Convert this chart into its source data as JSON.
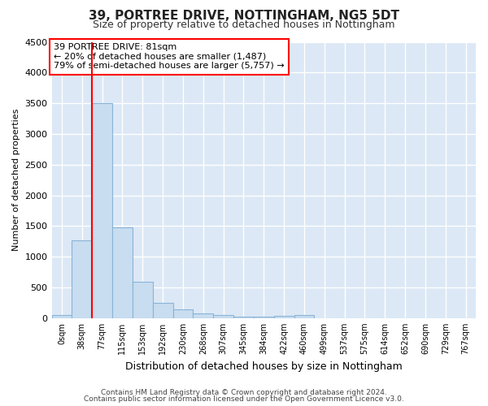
{
  "title": "39, PORTREE DRIVE, NOTTINGHAM, NG5 5DT",
  "subtitle": "Size of property relative to detached houses in Nottingham",
  "xlabel": "Distribution of detached houses by size in Nottingham",
  "ylabel": "Number of detached properties",
  "bar_color": "#c8ddf0",
  "bar_edge_color": "#8ab4d8",
  "plot_bg_color": "#dce8f5",
  "fig_bg_color": "#ffffff",
  "grid_color": "#ffffff",
  "bin_labels": [
    "0sqm",
    "38sqm",
    "77sqm",
    "115sqm",
    "153sqm",
    "192sqm",
    "230sqm",
    "268sqm",
    "307sqm",
    "345sqm",
    "384sqm",
    "422sqm",
    "460sqm",
    "499sqm",
    "537sqm",
    "575sqm",
    "614sqm",
    "652sqm",
    "690sqm",
    "729sqm",
    "767sqm"
  ],
  "bin_values": [
    50,
    1270,
    3500,
    1480,
    590,
    250,
    140,
    80,
    45,
    30,
    30,
    40,
    45,
    0,
    0,
    0,
    0,
    0,
    0,
    0,
    0
  ],
  "red_line_bin_index": 2,
  "annotation_lines": [
    "39 PORTREE DRIVE: 81sqm",
    "← 20% of detached houses are smaller (1,487)",
    "79% of semi-detached houses are larger (5,757) →"
  ],
  "ylim_max": 4500,
  "yticks": [
    0,
    500,
    1000,
    1500,
    2000,
    2500,
    3000,
    3500,
    4000,
    4500
  ],
  "footer1": "Contains HM Land Registry data © Crown copyright and database right 2024.",
  "footer2": "Contains public sector information licensed under the Open Government Licence v3.0."
}
